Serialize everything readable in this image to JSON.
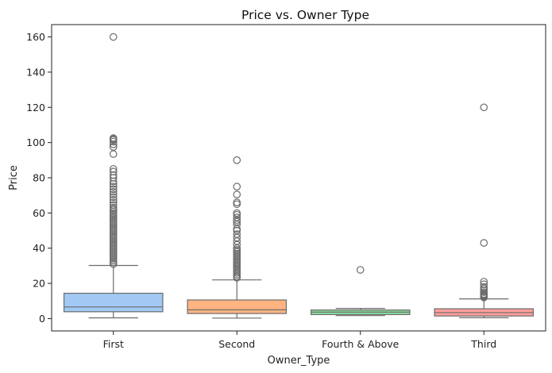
{
  "chart_data": {
    "type": "box",
    "title": "Price vs. Owner Type",
    "xlabel": "Owner_Type",
    "ylabel": "Price",
    "ylim": [
      -7,
      167
    ],
    "yticks": [
      0,
      20,
      40,
      60,
      80,
      100,
      120,
      140,
      160
    ],
    "grid": false,
    "categories": [
      "First",
      "Second",
      "Fourth & Above",
      "Third"
    ],
    "boxes": [
      {
        "category": "First",
        "color": "#a1c9f4",
        "q1": 3.9,
        "median": 6.6,
        "q3": 14.4,
        "whisker_low": 0.45,
        "whisker_high": 30.2,
        "outliers": [
          160,
          102.5,
          102,
          101.5,
          100.5,
          99,
          97.5,
          93.5,
          85,
          83.5,
          81.5,
          80,
          78,
          76.5,
          75,
          73.5,
          72,
          70.5,
          69,
          67.5,
          66,
          64.5,
          63,
          62,
          61,
          60,
          59,
          58,
          57,
          56,
          55,
          54,
          53,
          52,
          51,
          50,
          49,
          48,
          47,
          46,
          45,
          44,
          43,
          42,
          41,
          40,
          39,
          38,
          37,
          36,
          35,
          34,
          33,
          32,
          31
        ]
      },
      {
        "category": "Second",
        "color": "#ffb482",
        "q1": 2.9,
        "median": 5.0,
        "q3": 10.6,
        "whisker_low": 0.3,
        "whisker_high": 22.0,
        "outliers": [
          90,
          75,
          70.5,
          66,
          65,
          60,
          59,
          57.5,
          56,
          55,
          53.5,
          51,
          50,
          48,
          46,
          44,
          42,
          40,
          39,
          38,
          37,
          36,
          35,
          34,
          33,
          32,
          31,
          30,
          29,
          28,
          27,
          26,
          25,
          24,
          23.2
        ]
      },
      {
        "category": "Fourth & Above",
        "color": "#8de5a1",
        "q1": 2.3,
        "median": 3.7,
        "q3": 4.9,
        "whisker_low": 1.7,
        "whisker_high": 5.8,
        "outliers": [
          27.7
        ]
      },
      {
        "category": "Third",
        "color": "#ff9f9b",
        "q1": 1.5,
        "median": 3.4,
        "q3": 5.6,
        "whisker_low": 0.5,
        "whisker_high": 11.2,
        "outliers": [
          120,
          43,
          21,
          19.5,
          18,
          17,
          16,
          15,
          14,
          13.5,
          13,
          12.5,
          12
        ]
      }
    ]
  }
}
